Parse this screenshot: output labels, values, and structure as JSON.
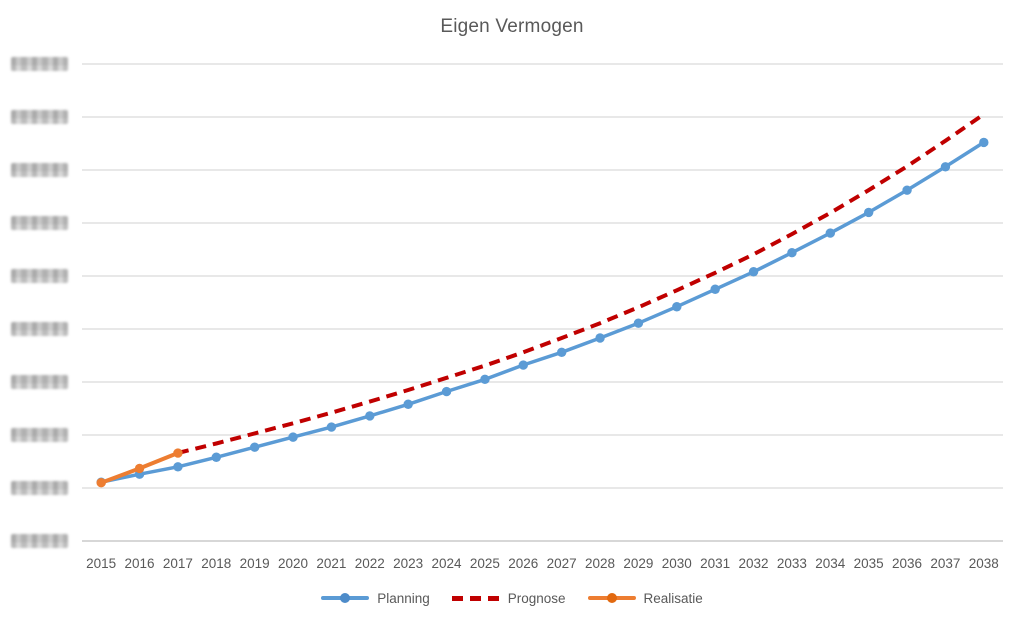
{
  "title": "Eigen Vermogen",
  "colors": {
    "planning": "#5B9BD5",
    "prognose": "#C00000",
    "realisatie": "#ED7D31",
    "gridline": "#D9D9D9",
    "axis_line": "#BFBFBF",
    "text": "#595959"
  },
  "y_axis": {
    "tick_count": 10,
    "tick_labels_redacted": true,
    "note": "y-axis tick labels are pixelated/blurred out in the source image"
  },
  "legend": {
    "items": [
      "Planning",
      "Prognose",
      "Realisatie"
    ]
  },
  "chart_data": {
    "type": "line",
    "title": "Eigen Vermogen",
    "x": [
      2015,
      2016,
      2017,
      2018,
      2019,
      2020,
      2021,
      2022,
      2023,
      2024,
      2025,
      2026,
      2027,
      2028,
      2029,
      2030,
      2031,
      2032,
      2033,
      2034,
      2035,
      2036,
      2037,
      2038
    ],
    "series": [
      {
        "name": "Planning",
        "color": "#5B9BD5",
        "style": "solid",
        "markers": true,
        "line_width": 3.5,
        "values": [
          1.11,
          1.26,
          1.4,
          1.58,
          1.77,
          1.96,
          2.15,
          2.36,
          2.58,
          2.82,
          3.05,
          3.32,
          3.56,
          3.83,
          4.11,
          4.42,
          4.75,
          5.08,
          5.44,
          5.81,
          6.2,
          6.62,
          7.06,
          7.52
        ]
      },
      {
        "name": "Prognose",
        "color": "#C00000",
        "style": "dashed",
        "markers": false,
        "line_width": 4,
        "values": [
          null,
          null,
          1.66,
          1.84,
          2.03,
          2.22,
          2.42,
          2.63,
          2.85,
          3.08,
          3.31,
          3.56,
          3.83,
          4.11,
          4.41,
          4.73,
          5.06,
          5.41,
          5.79,
          6.19,
          6.62,
          7.07,
          7.55,
          8.05
        ]
      },
      {
        "name": "Realisatie",
        "color": "#ED7D31",
        "style": "solid",
        "markers": true,
        "line_width": 4,
        "values": [
          1.1,
          1.37,
          1.66,
          null,
          null,
          null,
          null,
          null,
          null,
          null,
          null,
          null,
          null,
          null,
          null,
          null,
          null,
          null,
          null,
          null,
          null,
          null,
          null,
          null
        ]
      }
    ],
    "ylim": [
      0,
      9
    ],
    "y_unit": "gridline units (actual y-axis values redacted in source image)",
    "grid": true,
    "legend_position": "bottom"
  }
}
